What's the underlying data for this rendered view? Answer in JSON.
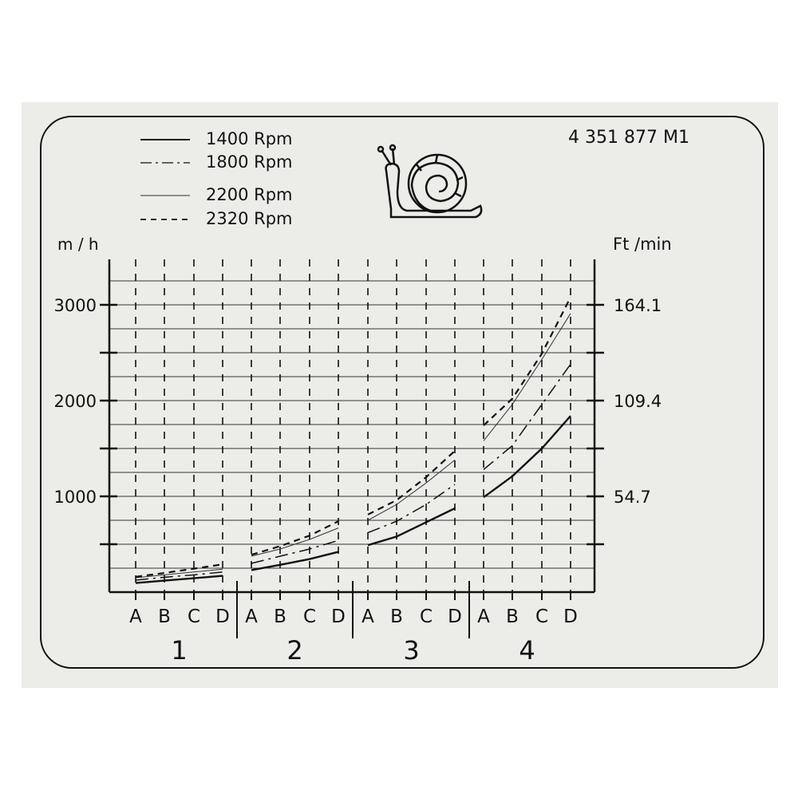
{
  "part_number": "4 351 877 M1",
  "logo": "snail-slow-speed",
  "chart_data": {
    "type": "line",
    "ylabel_left": "m / h",
    "ylabel_right": "Ft /min",
    "ylim": [
      0,
      3250
    ],
    "left_ticks": [
      {
        "value": 1000,
        "label": "1000"
      },
      {
        "value": 2000,
        "label": "2000"
      },
      {
        "value": 3000,
        "label": "3000"
      }
    ],
    "right_ticks": [
      {
        "value": 1000,
        "label": "54.7"
      },
      {
        "value": 2000,
        "label": "109.4"
      },
      {
        "value": 3000,
        "label": "164.1"
      }
    ],
    "minor_tick_step": 500,
    "grid": true,
    "grid_step": 250,
    "groups": [
      "1",
      "2",
      "3",
      "4"
    ],
    "sub_categories": [
      "A",
      "B",
      "C",
      "D"
    ],
    "legend_position": "top-left",
    "series": [
      {
        "name": "1400 Rpm",
        "style": "solid-thick",
        "values": [
          [
            95,
            120,
            145,
            170
          ],
          [
            230,
            285,
            345,
            420
          ],
          [
            490,
            580,
            730,
            875
          ],
          [
            990,
            1210,
            1500,
            1840
          ]
        ]
      },
      {
        "name": "1800 Rpm",
        "style": "dash-dot",
        "values": [
          [
            125,
            155,
            180,
            210
          ],
          [
            300,
            375,
            450,
            540
          ],
          [
            620,
            740,
            915,
            1125
          ],
          [
            1280,
            1530,
            1960,
            2380
          ]
        ]
      },
      {
        "name": "2200 Rpm",
        "style": "solid-thin",
        "values": [
          [
            150,
            180,
            210,
            240
          ],
          [
            375,
            450,
            550,
            670
          ],
          [
            750,
            915,
            1140,
            1380
          ],
          [
            1580,
            1960,
            2430,
            2910
          ]
        ]
      },
      {
        "name": "2320 Rpm",
        "style": "dashed",
        "values": [
          [
            160,
            200,
            245,
            290
          ],
          [
            390,
            480,
            590,
            740
          ],
          [
            810,
            960,
            1200,
            1475
          ],
          [
            1740,
            2020,
            2490,
            3080
          ]
        ]
      }
    ]
  }
}
